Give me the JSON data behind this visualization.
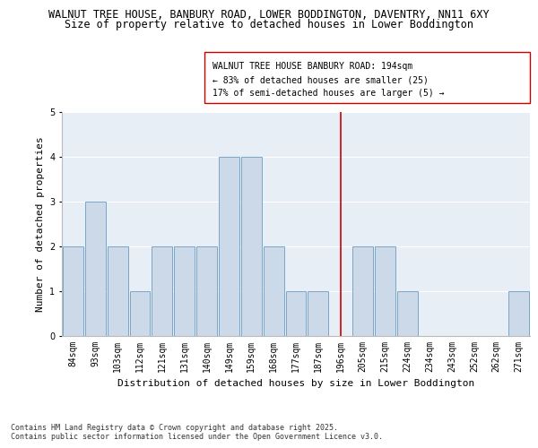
{
  "title_line1": "WALNUT TREE HOUSE, BANBURY ROAD, LOWER BODDINGTON, DAVENTRY, NN11 6XY",
  "title_line2": "Size of property relative to detached houses in Lower Boddington",
  "xlabel": "Distribution of detached houses by size in Lower Boddington",
  "ylabel": "Number of detached properties",
  "footnote": "Contains HM Land Registry data © Crown copyright and database right 2025.\nContains public sector information licensed under the Open Government Licence v3.0.",
  "categories": [
    "84sqm",
    "93sqm",
    "103sqm",
    "112sqm",
    "121sqm",
    "131sqm",
    "140sqm",
    "149sqm",
    "159sqm",
    "168sqm",
    "177sqm",
    "187sqm",
    "196sqm",
    "205sqm",
    "215sqm",
    "224sqm",
    "234sqm",
    "243sqm",
    "252sqm",
    "262sqm",
    "271sqm"
  ],
  "values": [
    2,
    3,
    2,
    1,
    2,
    2,
    2,
    4,
    4,
    2,
    1,
    1,
    0,
    2,
    2,
    1,
    0,
    0,
    0,
    0,
    1
  ],
  "bar_color": "#ccd9e8",
  "bar_edge_color": "#6b9cc2",
  "vline_index": 12,
  "vline_color": "#cc0000",
  "vline_label": "WALNUT TREE HOUSE BANBURY ROAD: 194sqm",
  "annotation_line2": "← 83% of detached houses are smaller (25)",
  "annotation_line3": "17% of semi-detached houses are larger (5) →",
  "ylim": [
    0,
    5
  ],
  "yticks": [
    0,
    1,
    2,
    3,
    4,
    5
  ],
  "plot_bg_color": "#e8eef6",
  "grid_color": "#ffffff",
  "title_fontsize": 8.5,
  "subtitle_fontsize": 8.5,
  "axis_label_fontsize": 8,
  "tick_fontsize": 7,
  "annotation_fontsize": 7,
  "footnote_fontsize": 6
}
